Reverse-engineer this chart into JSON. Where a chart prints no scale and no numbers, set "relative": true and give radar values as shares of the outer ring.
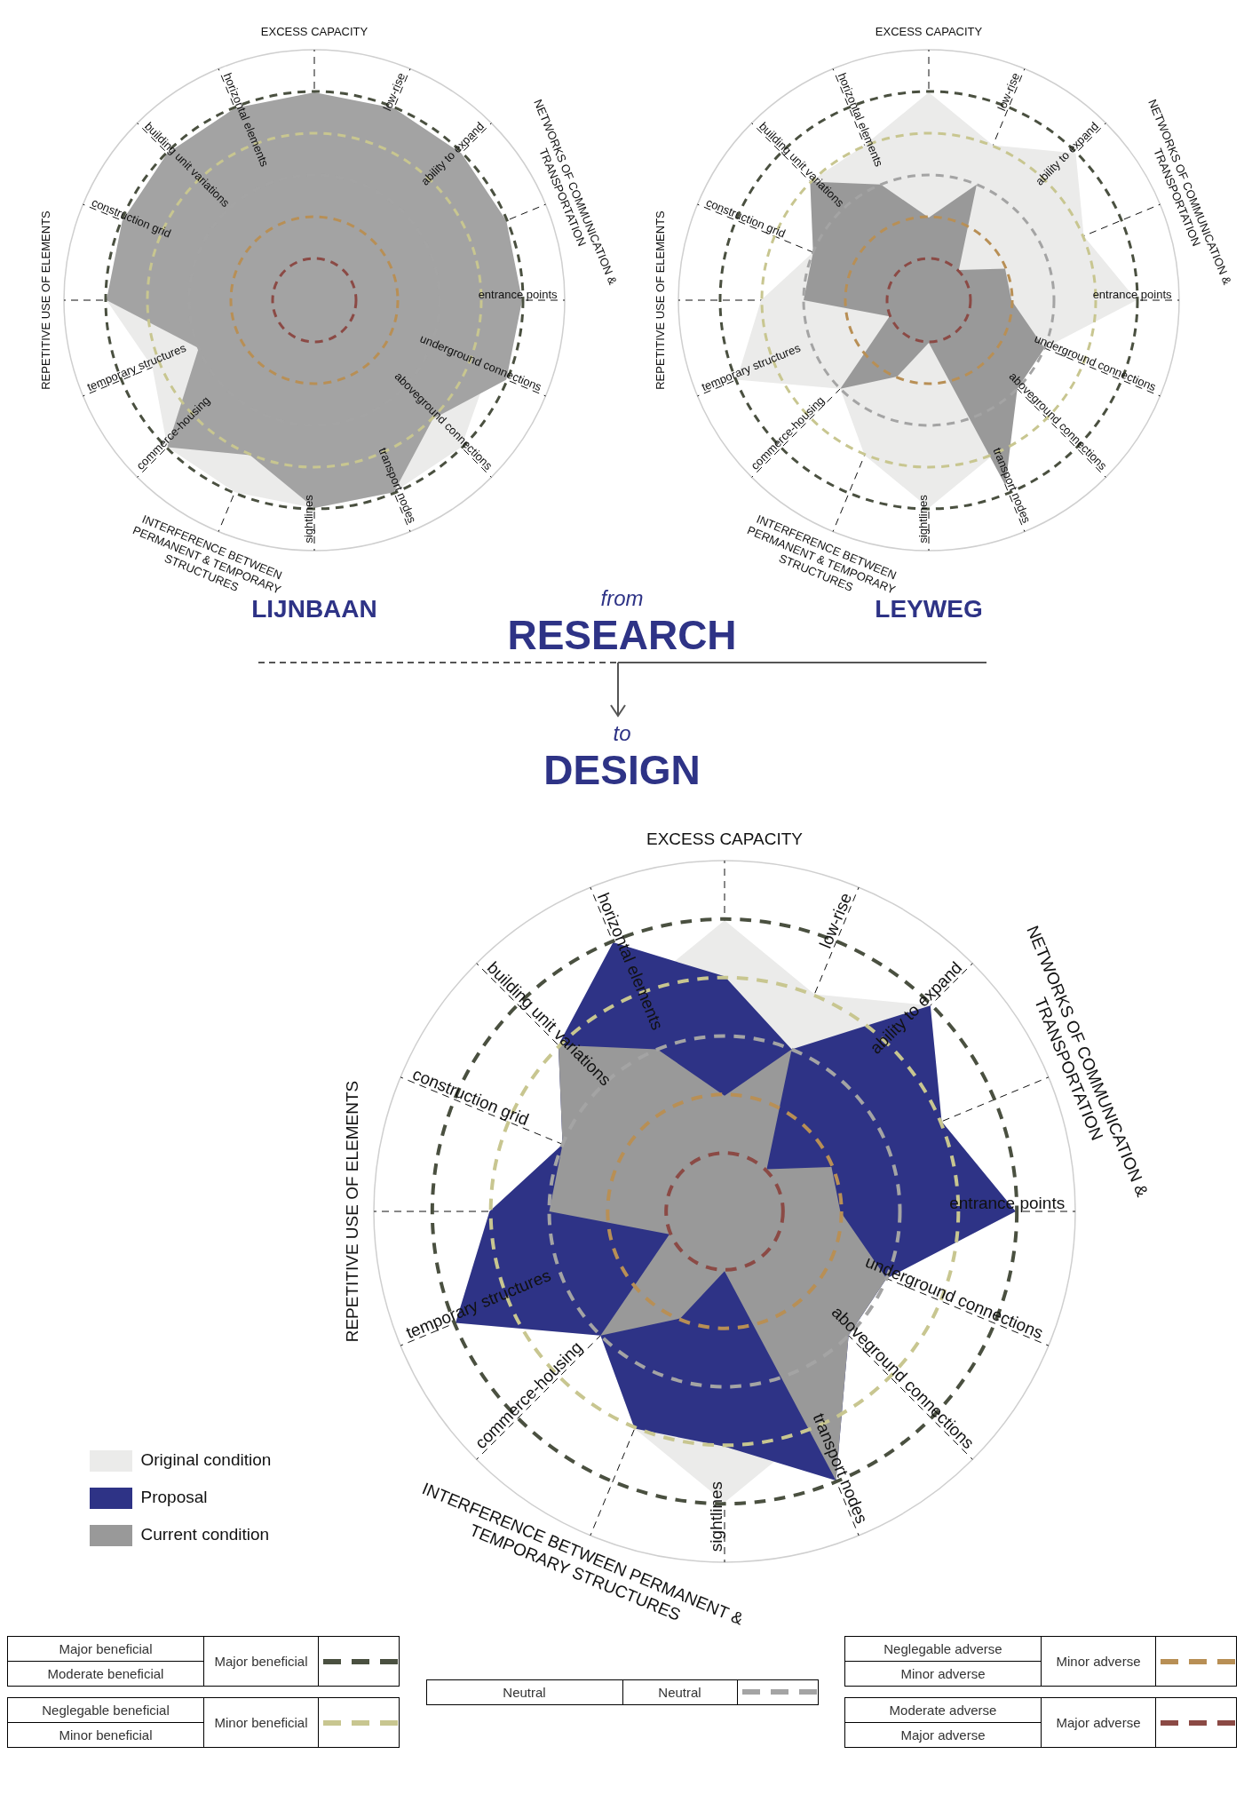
{
  "chart_data": [
    {
      "type": "radar",
      "title": "LIJNBAAN",
      "relative": true,
      "ref_lines": [
        {
          "axis": "y",
          "color": "#4a5040",
          "line_style": "dashed"
        },
        {
          "axis": "y",
          "color": "#c8c690",
          "line_style": "dashed"
        },
        {
          "axis": "y",
          "color": "#a4a4a4",
          "line_style": "dashed"
        },
        {
          "axis": "y",
          "color": "#b88f55",
          "line_style": "dashed"
        },
        {
          "axis": "y",
          "color": "#8b4a45",
          "line_style": "dashed"
        }
      ],
      "categories": [
        "EXCESS CAPACITY",
        "low-rise",
        "ability to expand",
        "NETWORKS OF COMMUNICATION & TRANSPORTATION",
        "entrance points",
        "underground connections",
        "aboveground connections",
        "transport nodes",
        "sightlines",
        "INTERFERENCE BETWEEN PERMANENT & TEMPORARY STRUCTURES",
        "commerce-housing",
        "temporary structures",
        "REPETITIVE USE OF ELEMENTS",
        "construction grid",
        "building unit variations",
        "horizontal elements"
      ],
      "series": [
        {
          "color": "#ebebea",
          "values": [
            0.67,
            0.83,
            0.5,
            0.83,
            0.75,
            0.75,
            0.83,
            0.83,
            0.83,
            0.83,
            0.83,
            0.7,
            0.83,
            0.83,
            0.67,
            0.83
          ]
        },
        {
          "color": "#a3a3a3",
          "values": [
            0.83,
            0.83,
            0.83,
            0.83,
            0.83,
            0.83,
            0.67,
            0.83,
            0.83,
            0.67,
            0.83,
            0.5,
            0.83,
            0.83,
            0.83,
            0.83
          ]
        }
      ]
    },
    {
      "type": "radar",
      "title": "LEYWEG",
      "relative": true,
      "categories": [
        "EXCESS CAPACITY",
        "low-rise",
        "ability to expand",
        "NETWORKS OF COMMUNICATION & TRANSPORTATION",
        "entrance points",
        "underground connections",
        "aboveground connections",
        "transport nodes",
        "sightlines",
        "INTERFERENCE BETWEEN PERMANENT & TEMPORARY STRUCTURES",
        "commerce-housing",
        "temporary structures",
        "REPETITIVE USE OF ELEMENTS",
        "construction grid",
        "building unit variations",
        "horizontal elements"
      ],
      "series": [
        {
          "color": "#ebebea",
          "values": [
            0.83,
            0.67,
            0.83,
            0.67,
            0.83,
            0.5,
            0.5,
            0.67,
            0.83,
            0.67,
            0.5,
            0.83,
            0.67,
            0.5,
            0.67,
            0.67
          ]
        },
        {
          "color": "#999999",
          "values": [
            0.33,
            0.5,
            0.17,
            0.33,
            0.33,
            0.5,
            0.5,
            0.8,
            0.17,
            0.33,
            0.5,
            0.17,
            0.5,
            0.5,
            0.67,
            0.5
          ]
        }
      ],
      "ref_lines": [
        {
          "axis": "y",
          "color": "#4a5040",
          "line_style": "dashed"
        },
        {
          "axis": "y",
          "color": "#c8c690",
          "line_style": "dashed"
        },
        {
          "axis": "y",
          "color": "#a4a4a4",
          "line_style": "dashed"
        },
        {
          "axis": "y",
          "color": "#b88f55",
          "line_style": "dashed"
        },
        {
          "axis": "y",
          "color": "#8b4a45",
          "line_style": "dashed"
        }
      ]
    },
    {
      "type": "radar",
      "title": "DESIGN",
      "relative": true,
      "legend": "bottom left",
      "categories": [
        "EXCESS CAPACITY",
        "low-rise",
        "ability to expand",
        "NETWORKS OF COMMUNICATION & TRANSPORTATION",
        "entrance points",
        "underground connections",
        "aboveground connections",
        "transport nodes",
        "sightlines",
        "INTERFERENCE BETWEEN PERMANENT & TEMPORARY STRUCTURES",
        "commerce-housing",
        "temporary structures",
        "REPETITIVE USE OF ELEMENTS",
        "construction grid",
        "building unit variations",
        "horizontal elements"
      ],
      "series": [
        {
          "name": "Original condition",
          "color": "#ebebea",
          "values": [
            0.83,
            0.67,
            0.83,
            0.67,
            0.83,
            0.5,
            0.5,
            0.67,
            0.83,
            0.67,
            0.5,
            0.83,
            0.67,
            0.5,
            0.67,
            0.67
          ]
        },
        {
          "name": "Proposal",
          "color": "#2e3386",
          "values": [
            0.67,
            0.5,
            0.83,
            0.67,
            0.83,
            0.5,
            0.5,
            0.83,
            0.67,
            0.67,
            0.5,
            0.83,
            0.67,
            0.5,
            0.67,
            0.83
          ]
        },
        {
          "name": "Current condition",
          "color": "#999999",
          "values": [
            0.33,
            0.5,
            0.17,
            0.33,
            0.33,
            0.5,
            0.5,
            0.83,
            0.17,
            0.33,
            0.5,
            0.17,
            0.5,
            0.5,
            0.67,
            0.5
          ]
        }
      ],
      "ref_lines": [
        {
          "axis": "y",
          "color": "#4a5040",
          "line_style": "dashed",
          "label": "Major beneficial"
        },
        {
          "axis": "y",
          "color": "#c8c690",
          "line_style": "dashed",
          "label": "Minor beneficial"
        },
        {
          "axis": "y",
          "color": "#a4a4a4",
          "line_style": "dashed",
          "label": "Neutral"
        },
        {
          "axis": "y",
          "color": "#b88f55",
          "line_style": "dashed",
          "label": "Minor adverse"
        },
        {
          "axis": "y",
          "color": "#8b4a45",
          "line_style": "dashed",
          "label": "Major adverse"
        }
      ],
      "annotations": [
        "from",
        "RESEARCH",
        "to",
        "Major beneficial\nModerate beneficial",
        "Neglegable beneficial\nMinor beneficial",
        "Neutral",
        "Neglegable adverse\nMinor adverse",
        "Moderate adverse\nMajor adverse"
      ]
    }
  ]
}
